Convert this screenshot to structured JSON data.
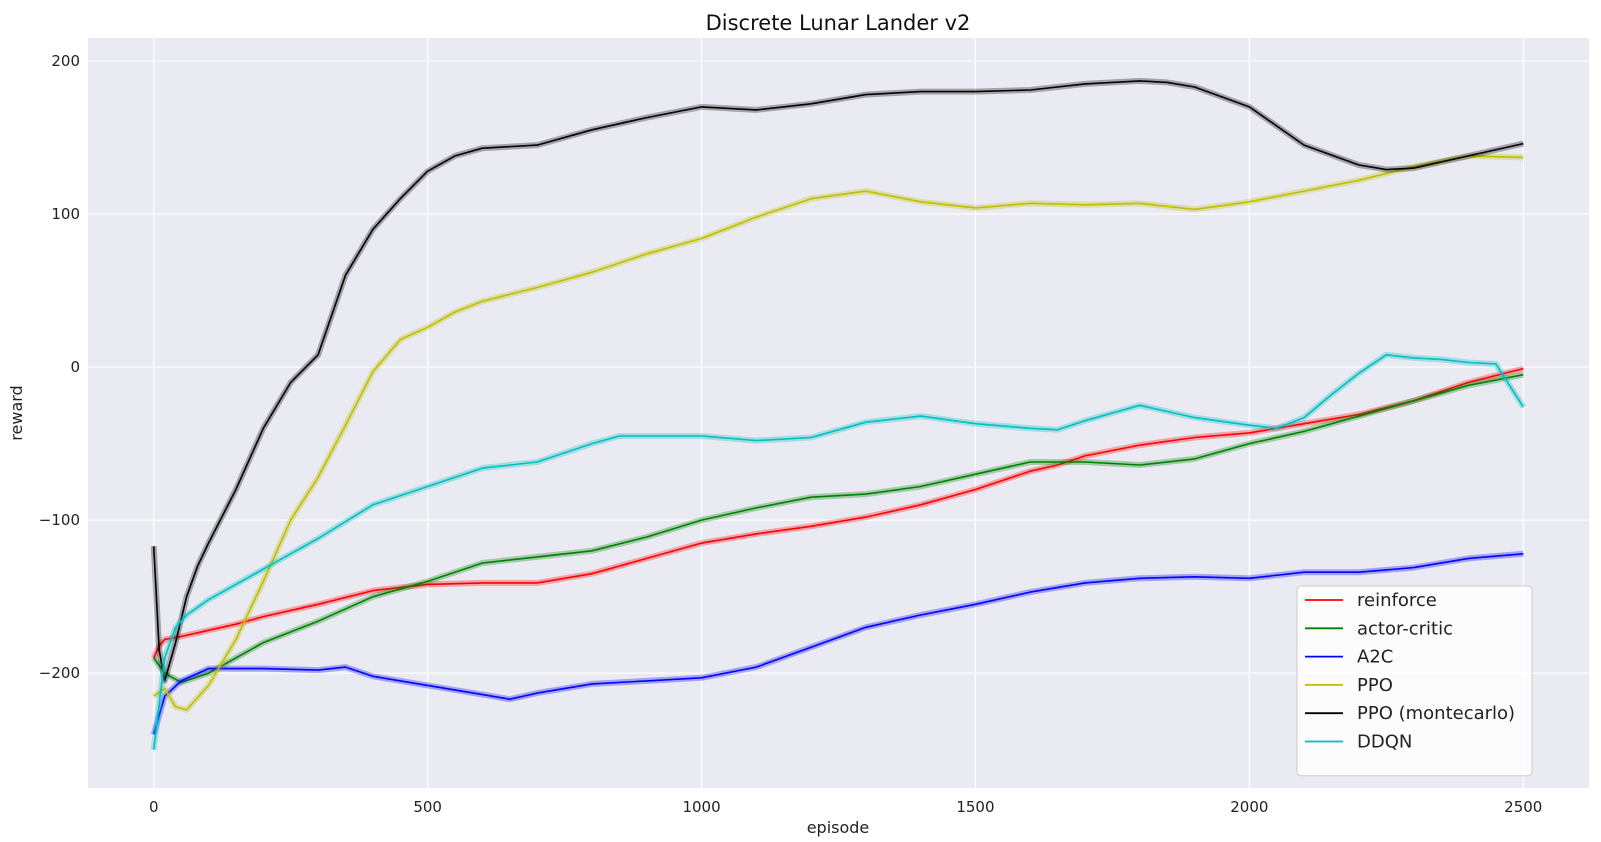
{
  "chart_data": {
    "type": "line",
    "title": "Discrete Lunar Lander v2",
    "xlabel": "episode",
    "ylabel": "reward",
    "xlim": [
      -120,
      2620
    ],
    "ylim": [
      -275,
      215
    ],
    "xticks": [
      0,
      500,
      1000,
      1500,
      2000,
      2500
    ],
    "yticks": [
      -200,
      -100,
      0,
      100,
      200
    ],
    "xtick_labels": [
      "0",
      "500",
      "1000",
      "1500",
      "2000",
      "2500"
    ],
    "ytick_labels": [
      "−200",
      "−100",
      "0",
      "100",
      "200"
    ],
    "grid": true,
    "legend_position": "lower-right",
    "series": [
      {
        "name": "reinforce",
        "color": "#ff0000",
        "x": [
          0,
          10,
          20,
          50,
          100,
          150,
          200,
          300,
          400,
          500,
          600,
          700,
          800,
          900,
          1000,
          1100,
          1200,
          1300,
          1400,
          1500,
          1600,
          1650,
          1700,
          1800,
          1900,
          2000,
          2100,
          2200,
          2300,
          2400,
          2500
        ],
        "y": [
          -190,
          -182,
          -178,
          -176,
          -172,
          -168,
          -163,
          -155,
          -146,
          -142,
          -141,
          -141,
          -135,
          -125,
          -115,
          -109,
          -104,
          -98,
          -90,
          -80,
          -68,
          -64,
          -58,
          -51,
          -46,
          -43,
          -37,
          -31,
          -22,
          -10,
          -1
        ]
      },
      {
        "name": "actor-critic",
        "color": "#008000",
        "x": [
          0,
          20,
          50,
          100,
          150,
          200,
          300,
          400,
          500,
          600,
          700,
          800,
          900,
          1000,
          1100,
          1200,
          1300,
          1400,
          1500,
          1600,
          1700,
          1800,
          1900,
          2000,
          2100,
          2200,
          2300,
          2400,
          2500
        ],
        "y": [
          -190,
          -200,
          -206,
          -200,
          -190,
          -180,
          -166,
          -150,
          -140,
          -128,
          -124,
          -120,
          -111,
          -100,
          -92,
          -85,
          -83,
          -78,
          -70,
          -62,
          -62,
          -64,
          -60,
          -50,
          -42,
          -32,
          -22,
          -12,
          -5
        ]
      },
      {
        "name": "A2C",
        "color": "#0000ff",
        "x": [
          0,
          20,
          50,
          100,
          200,
          300,
          350,
          400,
          500,
          600,
          650,
          700,
          800,
          900,
          1000,
          1100,
          1200,
          1300,
          1400,
          1500,
          1600,
          1700,
          1800,
          1900,
          2000,
          2100,
          2200,
          2300,
          2400,
          2500
        ],
        "y": [
          -240,
          -215,
          -205,
          -197,
          -197,
          -198,
          -196,
          -202,
          -208,
          -214,
          -217,
          -213,
          -207,
          -205,
          -203,
          -196,
          -183,
          -170,
          -162,
          -155,
          -147,
          -141,
          -138,
          -137,
          -138,
          -134,
          -134,
          -131,
          -125,
          -122
        ]
      },
      {
        "name": "PPO",
        "color": "#bfbf00",
        "x": [
          0,
          20,
          40,
          60,
          100,
          150,
          200,
          250,
          300,
          350,
          400,
          450,
          500,
          550,
          600,
          700,
          800,
          900,
          1000,
          1100,
          1200,
          1300,
          1400,
          1500,
          1600,
          1700,
          1800,
          1900,
          2000,
          2100,
          2200,
          2300,
          2400,
          2500
        ],
        "y": [
          -215,
          -210,
          -222,
          -224,
          -208,
          -178,
          -140,
          -100,
          -72,
          -38,
          -3,
          18,
          26,
          36,
          43,
          52,
          62,
          74,
          84,
          98,
          110,
          115,
          108,
          104,
          107,
          106,
          107,
          103,
          108,
          115,
          122,
          131,
          138,
          137
        ]
      },
      {
        "name": "PPO (montecarlo)",
        "color": "#000000",
        "x": [
          0,
          10,
          20,
          40,
          60,
          80,
          100,
          150,
          200,
          250,
          300,
          350,
          400,
          450,
          500,
          550,
          600,
          700,
          800,
          900,
          1000,
          1100,
          1200,
          1300,
          1400,
          1500,
          1600,
          1700,
          1800,
          1850,
          1900,
          2000,
          2100,
          2200,
          2250,
          2300,
          2400,
          2500
        ],
        "y": [
          -117,
          -185,
          -205,
          -180,
          -150,
          -130,
          -115,
          -80,
          -40,
          -10,
          8,
          60,
          90,
          110,
          128,
          138,
          143,
          145,
          155,
          163,
          170,
          168,
          172,
          178,
          180,
          180,
          181,
          185,
          187,
          186,
          183,
          170,
          145,
          132,
          129,
          130,
          138,
          146
        ]
      },
      {
        "name": "DDQN",
        "color": "#00bfbf",
        "x": [
          0,
          20,
          40,
          60,
          100,
          150,
          200,
          250,
          300,
          400,
          500,
          600,
          700,
          800,
          850,
          900,
          1000,
          1100,
          1200,
          1300,
          1400,
          1500,
          1600,
          1650,
          1700,
          1750,
          1800,
          1900,
          2000,
          2050,
          2100,
          2150,
          2200,
          2250,
          2300,
          2350,
          2400,
          2450,
          2500
        ],
        "y": [
          -250,
          -190,
          -170,
          -162,
          -152,
          -142,
          -132,
          -122,
          -112,
          -90,
          -78,
          -66,
          -62,
          -50,
          -45,
          -45,
          -45,
          -48,
          -46,
          -36,
          -32,
          -37,
          -40,
          -41,
          -35,
          -30,
          -25,
          -33,
          -38,
          -40,
          -33,
          -18,
          -4,
          8,
          6,
          5,
          3,
          2,
          -26
        ]
      }
    ]
  }
}
